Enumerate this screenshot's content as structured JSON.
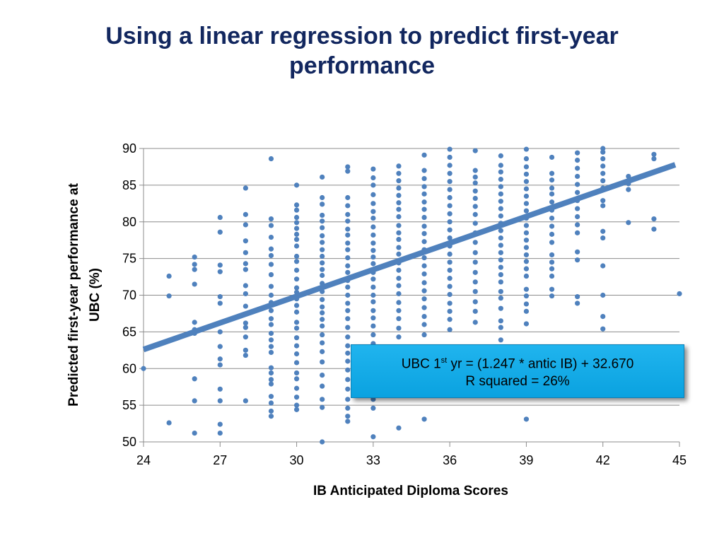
{
  "slide": {
    "title_line1": "Using a linear regression to predict first-year",
    "title_line2": "performance"
  },
  "annotation": {
    "eq_prefix": "UBC 1",
    "eq_sup": "st",
    "eq_rest": " yr = (1.247 * antic IB) + 32.670",
    "r_squared": "R squared = 26%"
  },
  "chart_data": {
    "type": "scatter",
    "title": "",
    "xlabel": "IB Anticipated Diploma Scores",
    "ylabel_line1": "Predicted first-year performance at",
    "ylabel_line2": "UBC (%)",
    "xlim": [
      24,
      45
    ],
    "ylim": [
      50,
      90
    ],
    "xticks": [
      24,
      27,
      30,
      33,
      36,
      39,
      42,
      45
    ],
    "yticks": [
      50,
      55,
      60,
      65,
      70,
      75,
      80,
      85,
      90
    ],
    "grid": "horizontal",
    "point_color": "#4f81bd",
    "line_color": "#4f81bd",
    "regression": {
      "slope": 1.247,
      "intercept": 32.67,
      "x_start": 24,
      "x_end": 45
    },
    "points": [
      [
        24,
        60.0
      ],
      [
        25,
        52.6
      ],
      [
        25,
        69.9
      ],
      [
        25,
        72.6
      ],
      [
        26,
        51.2
      ],
      [
        26,
        55.6
      ],
      [
        26,
        58.6
      ],
      [
        26,
        64.8
      ],
      [
        26,
        65.3
      ],
      [
        26,
        66.3
      ],
      [
        26,
        71.5
      ],
      [
        26,
        73.5
      ],
      [
        26,
        74.2
      ],
      [
        26,
        75.2
      ],
      [
        27,
        51.2
      ],
      [
        27,
        52.4
      ],
      [
        27,
        55.6
      ],
      [
        27,
        57.2
      ],
      [
        27,
        60.5
      ],
      [
        27,
        61.3
      ],
      [
        27,
        63.0
      ],
      [
        27,
        65.0
      ],
      [
        27,
        68.9
      ],
      [
        27,
        69.8
      ],
      [
        27,
        73.2
      ],
      [
        27,
        74.1
      ],
      [
        27,
        78.6
      ],
      [
        27,
        80.6
      ],
      [
        28,
        55.6
      ],
      [
        28,
        61.8
      ],
      [
        28,
        62.5
      ],
      [
        28,
        64.3
      ],
      [
        28,
        65.6
      ],
      [
        28,
        66.2
      ],
      [
        28,
        68.5
      ],
      [
        28,
        70.2
      ],
      [
        28,
        71.3
      ],
      [
        28,
        73.5
      ],
      [
        28,
        74.3
      ],
      [
        28,
        75.8
      ],
      [
        28,
        77.4
      ],
      [
        28,
        79.6
      ],
      [
        28,
        81.0
      ],
      [
        28,
        84.6
      ],
      [
        29,
        53.5
      ],
      [
        29,
        54.2
      ],
      [
        29,
        55.3
      ],
      [
        29,
        56.2
      ],
      [
        29,
        57.9
      ],
      [
        29,
        58.5
      ],
      [
        29,
        59.4
      ],
      [
        29,
        60.1
      ],
      [
        29,
        62.2
      ],
      [
        29,
        63.0
      ],
      [
        29,
        63.9
      ],
      [
        29,
        64.8
      ],
      [
        29,
        66.0
      ],
      [
        29,
        66.8
      ],
      [
        29,
        67.9
      ],
      [
        29,
        69.0
      ],
      [
        29,
        70.0
      ],
      [
        29,
        71.2
      ],
      [
        29,
        72.8
      ],
      [
        29,
        74.2
      ],
      [
        29,
        75.4
      ],
      [
        29,
        76.3
      ],
      [
        29,
        77.9
      ],
      [
        29,
        79.5
      ],
      [
        29,
        80.4
      ],
      [
        29,
        88.6
      ],
      [
        30,
        54.4
      ],
      [
        30,
        55.0
      ],
      [
        30,
        56.1
      ],
      [
        30,
        57.3
      ],
      [
        30,
        58.6
      ],
      [
        30,
        59.4
      ],
      [
        30,
        60.8
      ],
      [
        30,
        62.0
      ],
      [
        30,
        63.1
      ],
      [
        30,
        64.2
      ],
      [
        30,
        65.5
      ],
      [
        30,
        66.3
      ],
      [
        30,
        67.7
      ],
      [
        30,
        68.6
      ],
      [
        30,
        69.5
      ],
      [
        30,
        70.4
      ],
      [
        30,
        71.0
      ],
      [
        30,
        72.2
      ],
      [
        30,
        73.4
      ],
      [
        30,
        74.6
      ],
      [
        30,
        75.3
      ],
      [
        30,
        76.7
      ],
      [
        30,
        77.6
      ],
      [
        30,
        78.3
      ],
      [
        30,
        79.1
      ],
      [
        30,
        79.9
      ],
      [
        30,
        80.6
      ],
      [
        30,
        81.6
      ],
      [
        30,
        82.3
      ],
      [
        30,
        85.0
      ],
      [
        31,
        50.0
      ],
      [
        31,
        54.7
      ],
      [
        31,
        55.8
      ],
      [
        31,
        57.6
      ],
      [
        31,
        59.1
      ],
      [
        31,
        60.9
      ],
      [
        31,
        62.3
      ],
      [
        31,
        63.5
      ],
      [
        31,
        64.6
      ],
      [
        31,
        65.8
      ],
      [
        31,
        66.7
      ],
      [
        31,
        67.6
      ],
      [
        31,
        68.4
      ],
      [
        31,
        69.4
      ],
      [
        31,
        70.5
      ],
      [
        31,
        71.6
      ],
      [
        31,
        72.7
      ],
      [
        31,
        73.5
      ],
      [
        31,
        74.4
      ],
      [
        31,
        75.3
      ],
      [
        31,
        76.2
      ],
      [
        31,
        77.2
      ],
      [
        31,
        78.1
      ],
      [
        31,
        79.2
      ],
      [
        31,
        80.1
      ],
      [
        31,
        80.9
      ],
      [
        31,
        82.4
      ],
      [
        31,
        83.3
      ],
      [
        31,
        86.1
      ],
      [
        32,
        52.8
      ],
      [
        32,
        53.5
      ],
      [
        32,
        54.6
      ],
      [
        32,
        55.8
      ],
      [
        32,
        57.2
      ],
      [
        32,
        58.5
      ],
      [
        32,
        59.8
      ],
      [
        32,
        61.0
      ],
      [
        32,
        62.1
      ],
      [
        32,
        63.1
      ],
      [
        32,
        64.3
      ],
      [
        32,
        65.6
      ],
      [
        32,
        66.8
      ],
      [
        32,
        67.9
      ],
      [
        32,
        68.9
      ],
      [
        32,
        70.0
      ],
      [
        32,
        71.1
      ],
      [
        32,
        72.0
      ],
      [
        32,
        73.1
      ],
      [
        32,
        74.0
      ],
      [
        32,
        75.1
      ],
      [
        32,
        76.2
      ],
      [
        32,
        77.1
      ],
      [
        32,
        78.2
      ],
      [
        32,
        79.0
      ],
      [
        32,
        80.1
      ],
      [
        32,
        81.0
      ],
      [
        32,
        82.2
      ],
      [
        32,
        83.3
      ],
      [
        32,
        86.9
      ],
      [
        32,
        87.5
      ],
      [
        33,
        50.7
      ],
      [
        33,
        54.6
      ],
      [
        33,
        55.8
      ],
      [
        33,
        57.0
      ],
      [
        33,
        63.4
      ],
      [
        33,
        64.6
      ],
      [
        33,
        65.8
      ],
      [
        33,
        66.9
      ],
      [
        33,
        67.9
      ],
      [
        33,
        69.1
      ],
      [
        33,
        70.0
      ],
      [
        33,
        71.1
      ],
      [
        33,
        72.2
      ],
      [
        33,
        73.1
      ],
      [
        33,
        74.3
      ],
      [
        33,
        75.2
      ],
      [
        33,
        76.1
      ],
      [
        33,
        77.1
      ],
      [
        33,
        78.2
      ],
      [
        33,
        79.3
      ],
      [
        33,
        80.5
      ],
      [
        33,
        81.4
      ],
      [
        33,
        82.5
      ],
      [
        33,
        83.7
      ],
      [
        33,
        85.0
      ],
      [
        33,
        86.0
      ],
      [
        33,
        87.2
      ],
      [
        34,
        51.9
      ],
      [
        34,
        64.3
      ],
      [
        34,
        65.5
      ],
      [
        34,
        66.8
      ],
      [
        34,
        67.9
      ],
      [
        34,
        69.0
      ],
      [
        34,
        70.2
      ],
      [
        34,
        71.3
      ],
      [
        34,
        72.3
      ],
      [
        34,
        73.4
      ],
      [
        34,
        74.4
      ],
      [
        34,
        75.6
      ],
      [
        34,
        76.5
      ],
      [
        34,
        77.6
      ],
      [
        34,
        78.5
      ],
      [
        34,
        79.5
      ],
      [
        34,
        80.7
      ],
      [
        34,
        81.7
      ],
      [
        34,
        82.6
      ],
      [
        34,
        83.6
      ],
      [
        34,
        84.6
      ],
      [
        34,
        85.6
      ],
      [
        34,
        86.6
      ],
      [
        34,
        87.6
      ],
      [
        35,
        53.1
      ],
      [
        35,
        64.6
      ],
      [
        35,
        66.0
      ],
      [
        35,
        67.1
      ],
      [
        35,
        68.3
      ],
      [
        35,
        69.5
      ],
      [
        35,
        70.6
      ],
      [
        35,
        71.7
      ],
      [
        35,
        72.9
      ],
      [
        35,
        74.0
      ],
      [
        35,
        75.1
      ],
      [
        35,
        76.2
      ],
      [
        35,
        77.3
      ],
      [
        35,
        78.4
      ],
      [
        35,
        79.4
      ],
      [
        35,
        80.6
      ],
      [
        35,
        81.7
      ],
      [
        35,
        82.7
      ],
      [
        35,
        83.8
      ],
      [
        35,
        84.8
      ],
      [
        35,
        85.9
      ],
      [
        35,
        87.0
      ],
      [
        35,
        89.1
      ],
      [
        36,
        65.3
      ],
      [
        36,
        66.7
      ],
      [
        36,
        67.8
      ],
      [
        36,
        68.9
      ],
      [
        36,
        70.1
      ],
      [
        36,
        71.2
      ],
      [
        36,
        72.3
      ],
      [
        36,
        73.4
      ],
      [
        36,
        74.5
      ],
      [
        36,
        75.6
      ],
      [
        36,
        76.7
      ],
      [
        36,
        77.8
      ],
      [
        36,
        78.9
      ],
      [
        36,
        80.0
      ],
      [
        36,
        81.1
      ],
      [
        36,
        82.2
      ],
      [
        36,
        83.3
      ],
      [
        36,
        84.4
      ],
      [
        36,
        85.5
      ],
      [
        36,
        86.6
      ],
      [
        36,
        87.7
      ],
      [
        36,
        88.8
      ],
      [
        36,
        89.9
      ],
      [
        37,
        66.3
      ],
      [
        37,
        67.8
      ],
      [
        37,
        69.1
      ],
      [
        37,
        70.5
      ],
      [
        37,
        71.8
      ],
      [
        37,
        73.1
      ],
      [
        37,
        74.5
      ],
      [
        37,
        75.8
      ],
      [
        37,
        77.2
      ],
      [
        37,
        78.5
      ],
      [
        37,
        79.8
      ],
      [
        37,
        81.0
      ],
      [
        37,
        82.1
      ],
      [
        37,
        83.2
      ],
      [
        37,
        84.2
      ],
      [
        37,
        85.3
      ],
      [
        37,
        86.1
      ],
      [
        37,
        87.0
      ],
      [
        37,
        89.7
      ],
      [
        38,
        63.9
      ],
      [
        38,
        65.6
      ],
      [
        38,
        66.5
      ],
      [
        38,
        68.2
      ],
      [
        38,
        69.6
      ],
      [
        38,
        70.5
      ],
      [
        38,
        71.8
      ],
      [
        38,
        72.8
      ],
      [
        38,
        73.8
      ],
      [
        38,
        74.8
      ],
      [
        38,
        75.8
      ],
      [
        38,
        76.8
      ],
      [
        38,
        77.8
      ],
      [
        38,
        78.8
      ],
      [
        38,
        79.8
      ],
      [
        38,
        80.8
      ],
      [
        38,
        81.8
      ],
      [
        38,
        82.8
      ],
      [
        38,
        83.8
      ],
      [
        38,
        84.8
      ],
      [
        38,
        85.8
      ],
      [
        38,
        86.8
      ],
      [
        38,
        87.7
      ],
      [
        38,
        89.0
      ],
      [
        39,
        53.1
      ],
      [
        39,
        66.1
      ],
      [
        39,
        67.8
      ],
      [
        39,
        68.8
      ],
      [
        39,
        69.9
      ],
      [
        39,
        70.8
      ],
      [
        39,
        72.6
      ],
      [
        39,
        73.6
      ],
      [
        39,
        74.6
      ],
      [
        39,
        75.5
      ],
      [
        39,
        76.5
      ],
      [
        39,
        77.5
      ],
      [
        39,
        78.5
      ],
      [
        39,
        79.5
      ],
      [
        39,
        80.5
      ],
      [
        39,
        81.5
      ],
      [
        39,
        82.5
      ],
      [
        39,
        83.5
      ],
      [
        39,
        84.5
      ],
      [
        39,
        85.5
      ],
      [
        39,
        86.5
      ],
      [
        39,
        87.5
      ],
      [
        39,
        88.6
      ],
      [
        39,
        89.9
      ],
      [
        40,
        69.9
      ],
      [
        40,
        70.8
      ],
      [
        40,
        72.6
      ],
      [
        40,
        73.6
      ],
      [
        40,
        74.5
      ],
      [
        40,
        75.5
      ],
      [
        40,
        77.2
      ],
      [
        40,
        78.3
      ],
      [
        40,
        79.4
      ],
      [
        40,
        80.5
      ],
      [
        40,
        81.6
      ],
      [
        40,
        82.7
      ],
      [
        40,
        83.8
      ],
      [
        40,
        84.6
      ],
      [
        40,
        85.7
      ],
      [
        40,
        86.6
      ],
      [
        40,
        88.8
      ],
      [
        41,
        68.9
      ],
      [
        41,
        69.8
      ],
      [
        41,
        74.8
      ],
      [
        41,
        75.9
      ],
      [
        41,
        78.5
      ],
      [
        41,
        79.6
      ],
      [
        41,
        80.7
      ],
      [
        41,
        81.8
      ],
      [
        41,
        82.9
      ],
      [
        41,
        84.0
      ],
      [
        41,
        85.1
      ],
      [
        41,
        86.2
      ],
      [
        41,
        87.3
      ],
      [
        41,
        88.4
      ],
      [
        41,
        89.4
      ],
      [
        42,
        65.4
      ],
      [
        42,
        67.1
      ],
      [
        42,
        70.0
      ],
      [
        42,
        74.0
      ],
      [
        42,
        77.8
      ],
      [
        42,
        78.7
      ],
      [
        42,
        82.2
      ],
      [
        42,
        82.9
      ],
      [
        42,
        84.6
      ],
      [
        42,
        85.6
      ],
      [
        42,
        86.6
      ],
      [
        42,
        87.6
      ],
      [
        42,
        88.6
      ],
      [
        42,
        89.5
      ],
      [
        42,
        90.0
      ],
      [
        43,
        79.9
      ],
      [
        43,
        84.4
      ],
      [
        43,
        85.2
      ],
      [
        43,
        86.2
      ],
      [
        44,
        79.0
      ],
      [
        44,
        80.4
      ],
      [
        44,
        88.6
      ],
      [
        44,
        89.2
      ],
      [
        45,
        70.2
      ]
    ]
  }
}
